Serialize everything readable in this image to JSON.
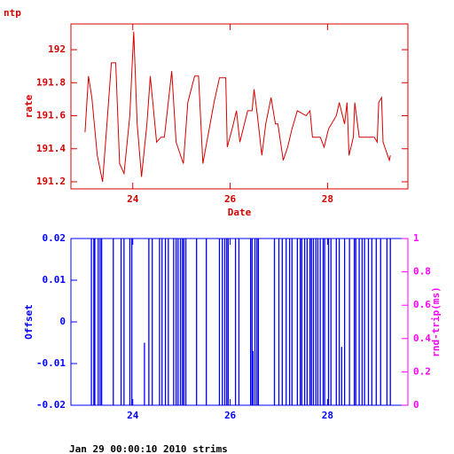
{
  "chart_data": [
    {
      "type": "line",
      "title": "ntp",
      "xlabel": "Date",
      "ylabel": "rate",
      "color": "#d40000",
      "x": [
        23.02,
        23.09,
        23.16,
        23.27,
        23.38,
        23.47,
        23.56,
        23.65,
        23.73,
        23.82,
        23.94,
        24.02,
        24.09,
        24.18,
        24.29,
        24.36,
        24.49,
        24.58,
        24.65,
        24.8,
        24.89,
        25.04,
        25.13,
        25.27,
        25.35,
        25.44,
        25.52,
        25.67,
        25.78,
        25.91,
        25.94,
        26.04,
        26.13,
        26.2,
        26.36,
        26.45,
        26.49,
        26.56,
        26.65,
        26.73,
        26.84,
        26.93,
        26.98,
        27.09,
        27.18,
        27.27,
        27.38,
        27.56,
        27.64,
        27.69,
        27.85,
        27.93,
        28.02,
        28.18,
        28.24,
        28.35,
        28.4,
        28.44,
        28.53,
        28.56,
        28.65,
        28.96,
        29.02,
        29.05,
        29.11,
        29.14,
        29.27,
        29.29
      ],
      "values": [
        191.5,
        191.84,
        191.71,
        191.36,
        191.2,
        191.55,
        191.92,
        191.92,
        191.31,
        191.25,
        191.6,
        192.11,
        191.55,
        191.23,
        191.55,
        191.84,
        191.44,
        191.47,
        191.47,
        191.87,
        191.44,
        191.31,
        191.68,
        191.84,
        191.84,
        191.31,
        191.44,
        191.68,
        191.83,
        191.83,
        191.41,
        191.52,
        191.63,
        191.44,
        191.63,
        191.63,
        191.76,
        191.6,
        191.36,
        191.55,
        191.71,
        191.55,
        191.55,
        191.33,
        191.41,
        191.52,
        191.63,
        191.6,
        191.63,
        191.47,
        191.47,
        191.41,
        191.52,
        191.6,
        191.68,
        191.55,
        191.68,
        191.36,
        191.47,
        191.68,
        191.47,
        191.47,
        191.44,
        191.68,
        191.71,
        191.44,
        191.33,
        191.36
      ],
      "xlim": [
        22.73,
        29.65
      ],
      "xticks": [
        24,
        26,
        28
      ],
      "ylim": [
        191.157,
        192.156
      ],
      "yticks": [
        191.2,
        191.4,
        191.6,
        191.8,
        192
      ]
    },
    {
      "type": "spike",
      "ylabel": "Offset",
      "y2label": "rnd-trip(ms)",
      "color": "#0000ff",
      "y2color": "#ff00ff",
      "x": [
        23.15,
        23.2,
        23.22,
        23.29,
        23.33,
        23.36,
        23.6,
        23.76,
        23.82,
        23.94,
        23.98,
        24.24,
        24.33,
        24.4,
        24.55,
        24.6,
        24.67,
        24.73,
        24.84,
        24.89,
        24.93,
        24.98,
        25.02,
        25.05,
        25.09,
        25.31,
        25.51,
        25.78,
        25.84,
        25.89,
        25.93,
        25.96,
        26.11,
        26.18,
        26.42,
        26.45,
        26.47,
        26.51,
        26.55,
        26.58,
        26.91,
        27.0,
        27.07,
        27.15,
        27.22,
        27.27,
        27.38,
        27.44,
        27.47,
        27.53,
        27.58,
        27.64,
        27.67,
        27.71,
        27.76,
        27.8,
        27.85,
        27.91,
        27.94,
        28.02,
        28.07,
        28.18,
        28.24,
        28.29,
        28.35,
        28.45,
        28.55,
        28.58,
        28.65,
        28.71,
        28.76,
        28.84,
        28.91,
        29.0,
        29.09,
        29.22,
        29.29
      ],
      "values": [
        0.02,
        0.02,
        0.02,
        0.02,
        0.02,
        0.02,
        0.02,
        0.02,
        0.02,
        0.02,
        0.02,
        -0.005,
        0.02,
        0.02,
        0.02,
        0.02,
        0.02,
        0.02,
        0.02,
        0.02,
        0.02,
        0.02,
        0.02,
        0.02,
        0.02,
        0.02,
        0.02,
        0.02,
        0.02,
        0.02,
        0.02,
        0.02,
        0.02,
        0.02,
        0.02,
        0.02,
        -0.007,
        0.02,
        0.02,
        0.02,
        0.02,
        0.02,
        0.02,
        0.02,
        0.02,
        0.02,
        0.02,
        0.02,
        0.02,
        0.02,
        0.02,
        0.02,
        0.02,
        0.02,
        0.02,
        0.02,
        0.02,
        0.02,
        0.02,
        0.02,
        0.02,
        0.02,
        0.02,
        -0.006,
        0.02,
        0.02,
        0.02,
        0.02,
        0.02,
        0.02,
        0.02,
        0.02,
        0.02,
        0.02,
        0.02,
        0.02,
        0.02
      ],
      "xlim": [
        22.73,
        29.65
      ],
      "xticks": [
        24,
        26,
        28
      ],
      "ylim": [
        -0.02,
        0.02
      ],
      "yticks": [
        -0.02,
        -0.01,
        0,
        0.01,
        0.02
      ],
      "y2lim": [
        0,
        1
      ],
      "y2ticks": [
        0,
        0.2,
        0.4,
        0.6,
        0.8,
        1
      ]
    }
  ],
  "footer": "Jan 29 00:00:10 2010 strims"
}
